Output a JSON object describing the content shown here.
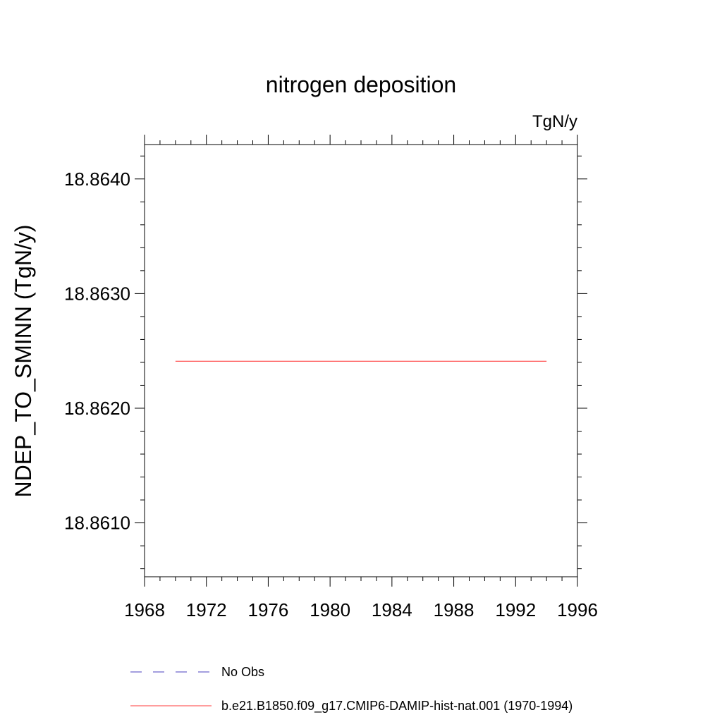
{
  "chart_data": {
    "type": "line",
    "title": "nitrogen deposition",
    "units_label": "TgN/y",
    "ylabel": "NDEP_TO_SMINN  (TgN/y)",
    "xlabel": "",
    "xlim": [
      1968,
      1996
    ],
    "ylim": [
      18.86053,
      18.8643
    ],
    "x_ticks": [
      1968,
      1972,
      1976,
      1980,
      1984,
      1988,
      1992,
      1996
    ],
    "x_tick_labels": [
      "1968",
      "1972",
      "1976",
      "1980",
      "1984",
      "1988",
      "1992",
      "1996"
    ],
    "y_ticks": [
      18.864,
      18.863,
      18.862,
      18.861
    ],
    "y_tick_labels": [
      "18.8640",
      "18.8630",
      "18.8620",
      "18.8610"
    ],
    "grid": false,
    "legend_position": "bottom",
    "series": [
      {
        "name": "No Obs",
        "color": "#4a3fbf",
        "dash": "dashed",
        "x": [],
        "values": []
      },
      {
        "name": "b.e21.B1850.f09_g17.CMIP6-DAMIP-hist-nat.001 (1970-1994)",
        "color": "#ff3b3b",
        "dash": "solid",
        "x": [
          1970,
          1994
        ],
        "values": [
          18.86241,
          18.86241
        ]
      }
    ]
  }
}
